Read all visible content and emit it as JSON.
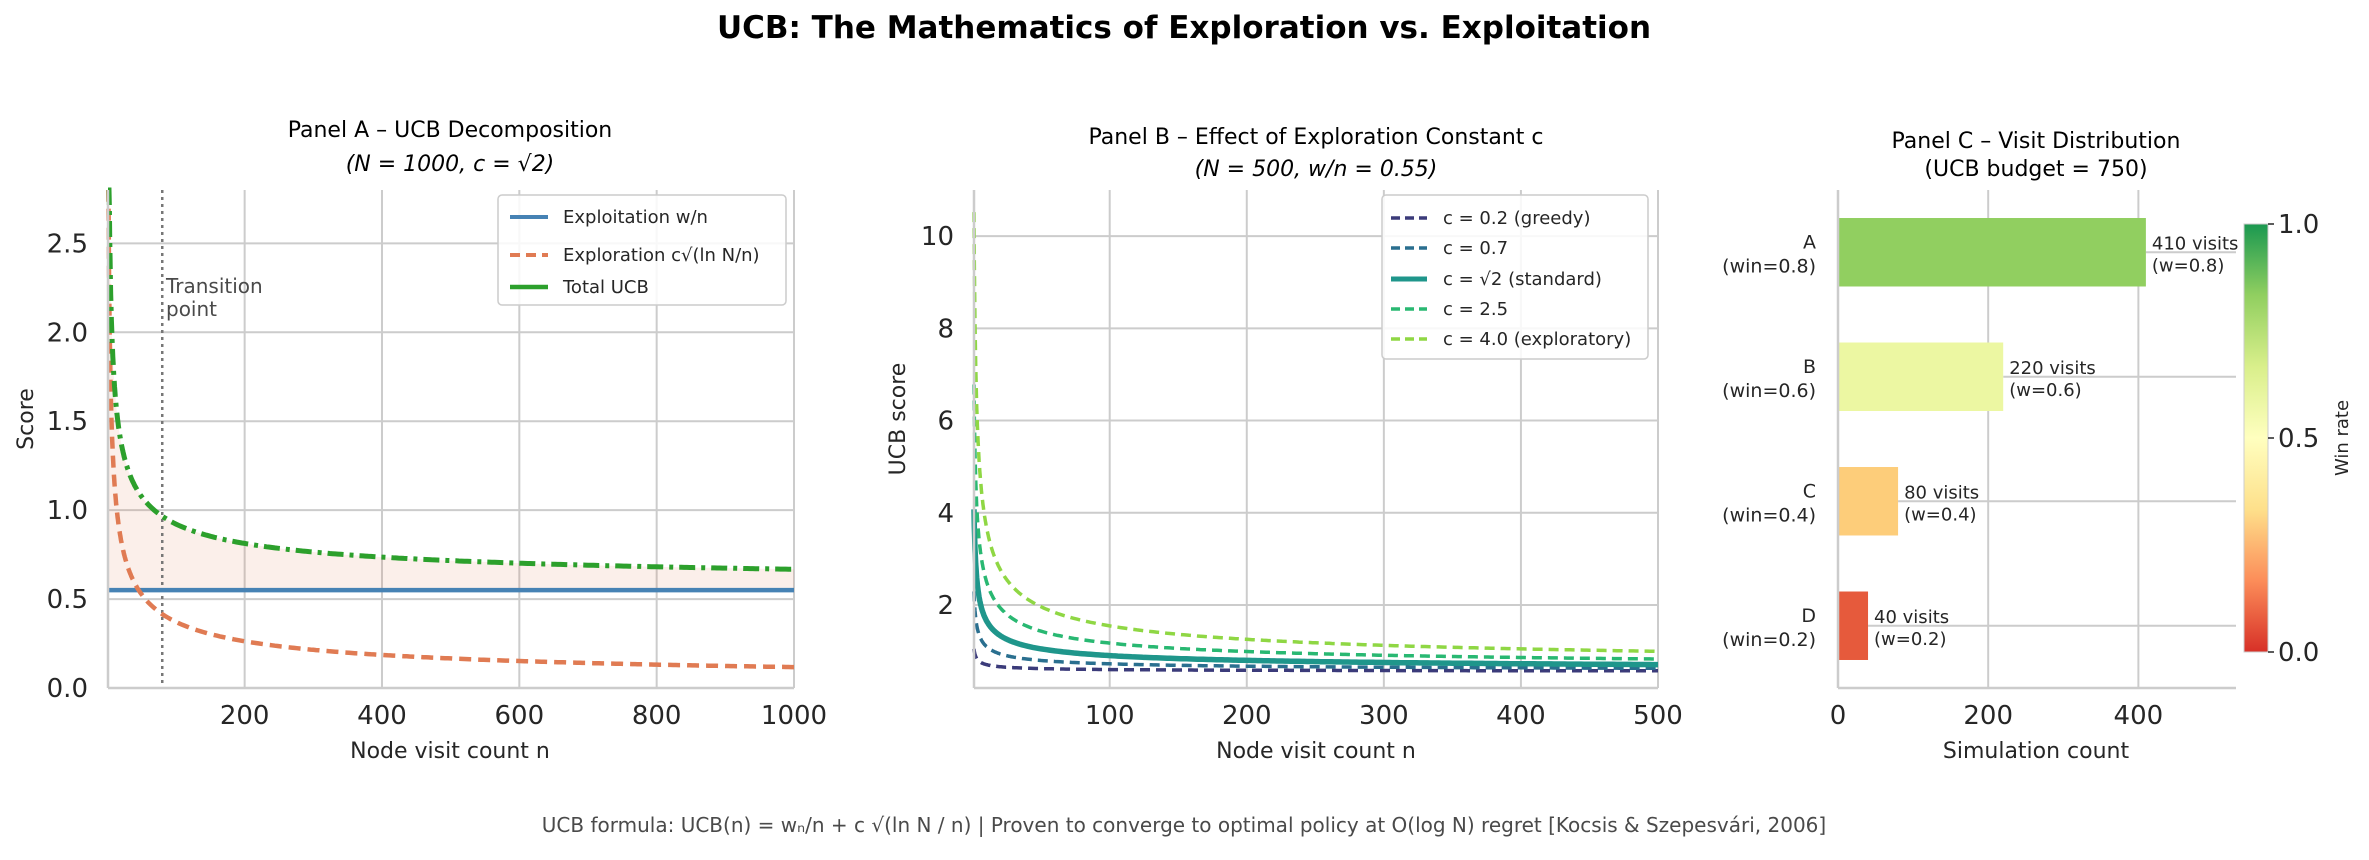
{
  "figure": {
    "suptitle": "UCB: The Mathematics of Exploration vs. Exploitation",
    "footer": "UCB formula:  UCB(n) = wₙ/n + c √(ln N / n)    |    Proven to converge to optimal policy at O(log N) regret  [Kocsis & Szepesvári, 2006]"
  },
  "chart_data": [
    {
      "id": "panel_a",
      "type": "line",
      "title": "Panel A  –  UCB Decomposition",
      "subtitle": "(N = 1000, c = √2)",
      "xlabel": "Node visit count  n",
      "ylabel": "Score",
      "xlim": [
        1,
        1000
      ],
      "ylim": [
        0,
        2.8
      ],
      "xticks": [
        200,
        400,
        600,
        800,
        1000
      ],
      "yticks": [
        0.0,
        0.5,
        1.0,
        1.5,
        2.0,
        2.5
      ],
      "ytick_labels": [
        "0.0",
        "0.5",
        "1.0",
        "1.5",
        "2.0",
        "2.5"
      ],
      "params": {
        "N": 1000,
        "c": 1.4142,
        "exploitation": 0.55
      },
      "series": [
        {
          "name": "Exploitation  w/n",
          "color": "#4682b4",
          "style": "solid",
          "formula": "w/n = 0.55"
        },
        {
          "name": "Exploration  c√(ln N/n)",
          "color": "#e07b53",
          "style": "dashed",
          "formula": "c*sqrt(ln(N)/n)"
        },
        {
          "name": "Total UCB",
          "color": "#2ca02c",
          "style": "dashdot",
          "formula": "w/n + c*sqrt(ln(N)/n)"
        }
      ],
      "shaded_region": {
        "between": [
          "Exploitation  w/n",
          "Total UCB"
        ],
        "color": "#e07b53",
        "opacity": 0.12
      },
      "transition": {
        "x": 80,
        "label_line1": "Transition",
        "label_line2": "point"
      },
      "legend_position": "upper right"
    },
    {
      "id": "panel_b",
      "type": "line",
      "title": "Panel B  –  Effect of Exploration Constant c",
      "subtitle": "(N = 500, w/n = 0.55)",
      "xlabel": "Node visit count  n",
      "ylabel": "UCB score",
      "xlim": [
        1,
        500
      ],
      "ylim": [
        0.2,
        11
      ],
      "xticks": [
        100,
        200,
        300,
        400,
        500
      ],
      "yticks": [
        2,
        4,
        6,
        8,
        10
      ],
      "ytick_labels": [
        "2",
        "4",
        "6",
        "8",
        "10"
      ],
      "params": {
        "N": 500,
        "exploitation": 0.55
      },
      "series": [
        {
          "name": "c = 0.2  (greedy)",
          "c": 0.2,
          "color": "#3b3b7a",
          "style": "dashed"
        },
        {
          "name": "c = 0.7",
          "c": 0.7,
          "color": "#2a6f8f",
          "style": "dashed"
        },
        {
          "name": "c = √2  (standard)",
          "c": 1.4142,
          "color": "#1f968b",
          "style": "solid"
        },
        {
          "name": "c = 2.5",
          "c": 2.5,
          "color": "#29b872",
          "style": "dashed"
        },
        {
          "name": "c = 4.0  (exploratory)",
          "c": 4.0,
          "color": "#8fd744",
          "style": "dashed"
        }
      ],
      "legend_position": "upper right"
    },
    {
      "id": "panel_c",
      "type": "bar",
      "orientation": "horizontal",
      "title": "Panel C  –  Visit Distribution",
      "subtitle": "(UCB budget = 750)",
      "xlabel": "Simulation count",
      "xlim": [
        0,
        530
      ],
      "xticks": [
        0,
        200,
        400
      ],
      "categories": [
        "A\n(win=0.8)",
        "B\n(win=0.6)",
        "C\n(win=0.4)",
        "D\n(win=0.2)"
      ],
      "category_names": [
        "A",
        "B",
        "C",
        "D"
      ],
      "category_wins": [
        "(win=0.8)",
        "(win=0.6)",
        "(win=0.4)",
        "(win=0.2)"
      ],
      "values": [
        410,
        220,
        80,
        40
      ],
      "win_rates": [
        0.8,
        0.6,
        0.4,
        0.2
      ],
      "bar_labels": [
        "410 visits",
        "220 visits",
        "80 visits",
        "40 visits"
      ],
      "bar_sublabels": [
        "(w=0.8)",
        "(w=0.6)",
        "(w=0.4)",
        "(w=0.2)"
      ],
      "colors": [
        "#91cf60",
        "#ecf7a2",
        "#fdcd7a",
        "#e65a3c"
      ],
      "colorbar": {
        "label": "Win rate",
        "range": [
          0.0,
          1.0
        ],
        "ticks": [
          "0.0",
          "0.5",
          "1.0"
        ],
        "colormap": [
          "#d73027",
          "#fc8d59",
          "#fee08b",
          "#ffffbf",
          "#d9ef8b",
          "#91cf60",
          "#1a9850"
        ]
      }
    }
  ]
}
